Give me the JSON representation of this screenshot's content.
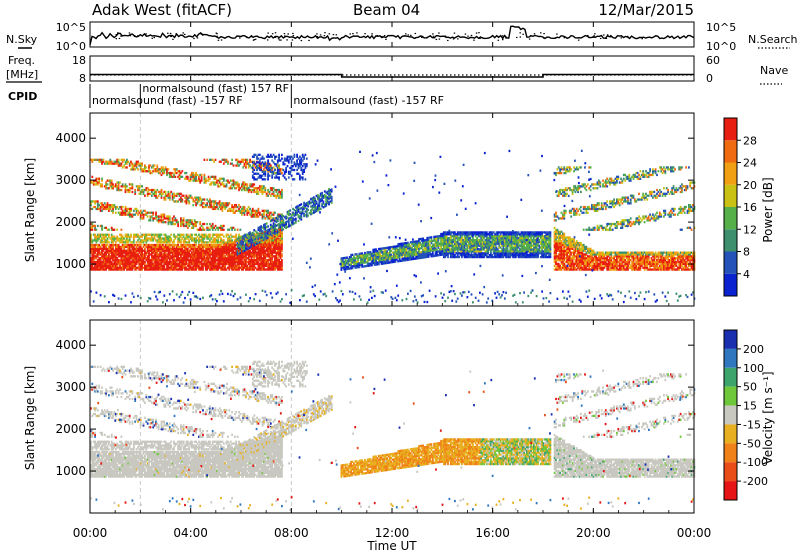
{
  "header": {
    "station": "Adak West (fitACF)",
    "beam": "Beam 04",
    "date": "12/Mar/2015"
  },
  "labels": {
    "nsky": "N.Sky",
    "nsearch": "N.Search",
    "freq": "Freq.",
    "freq_unit": "[MHz]",
    "nave": "Nave",
    "cpid": "CPID",
    "slant_range": "Slant Range [km]",
    "time_axis": "Time UT",
    "power_bar": "Power [dB]",
    "velocity_bar": "Velocity [m s⁻¹]"
  },
  "cpid_segments": [
    {
      "label": "normalsound (fast) -157 RF",
      "start_h": 0.0,
      "end_h": 8.0,
      "row": 2
    },
    {
      "label": "normalsound (fast) 157 RF",
      "start_h": 2.0,
      "end_h": 8.0,
      "row": 1
    },
    {
      "label": "normalsound (fast) -157 RF",
      "start_h": 8.0,
      "end_h": 24.0,
      "row": 2
    }
  ],
  "chart_data": [
    {
      "type": "line",
      "name": "noise",
      "y_left_ticks": [
        "10^5",
        "10^0"
      ],
      "y_right_ticks": [
        "10^5",
        "10^0"
      ],
      "x_range": [
        0,
        24
      ]
    },
    {
      "type": "line",
      "name": "frequency-nave",
      "y_left_ticks": [
        "18",
        "8"
      ],
      "y_right_ticks": [
        "60",
        "0"
      ],
      "x": [
        0,
        10,
        10,
        18,
        18,
        24
      ],
      "freq": [
        10.6,
        10.6,
        9.6,
        9.6,
        10.6,
        10.6
      ],
      "x_range": [
        0,
        24
      ]
    },
    {
      "type": "heatmap",
      "name": "power",
      "x_range": [
        0,
        24
      ],
      "y_range": [
        0,
        4600
      ],
      "y_ticks": [
        1000,
        2000,
        3000,
        4000
      ],
      "colorbar_ticks": [
        4,
        8,
        12,
        16,
        20,
        24,
        28
      ],
      "colorbar_range": [
        0,
        32
      ]
    },
    {
      "type": "heatmap",
      "name": "velocity",
      "x_range": [
        0,
        24
      ],
      "y_range": [
        0,
        4600
      ],
      "y_ticks": [
        1000,
        2000,
        3000,
        4000
      ],
      "colorbar_ticks": [
        "200",
        "100",
        "50",
        "15",
        "-15",
        "-50",
        "-100",
        "-200"
      ]
    }
  ],
  "x_ticks": [
    "00:00",
    "04:00",
    "08:00",
    "12:00",
    "16:00",
    "20:00",
    "00:00"
  ],
  "colors": {
    "power_scale": [
      "#0a22d0",
      "#2452b8",
      "#3d8f6e",
      "#56b04a",
      "#c9c215",
      "#f0a012",
      "#f06a10",
      "#e81e10"
    ],
    "velocity_scale": [
      "#1a2fb0",
      "#2f78c0",
      "#3da46c",
      "#6ec83a",
      "#c8c8c0",
      "#e8b020",
      "#f08018",
      "#ea4d18",
      "#e61414"
    ]
  }
}
